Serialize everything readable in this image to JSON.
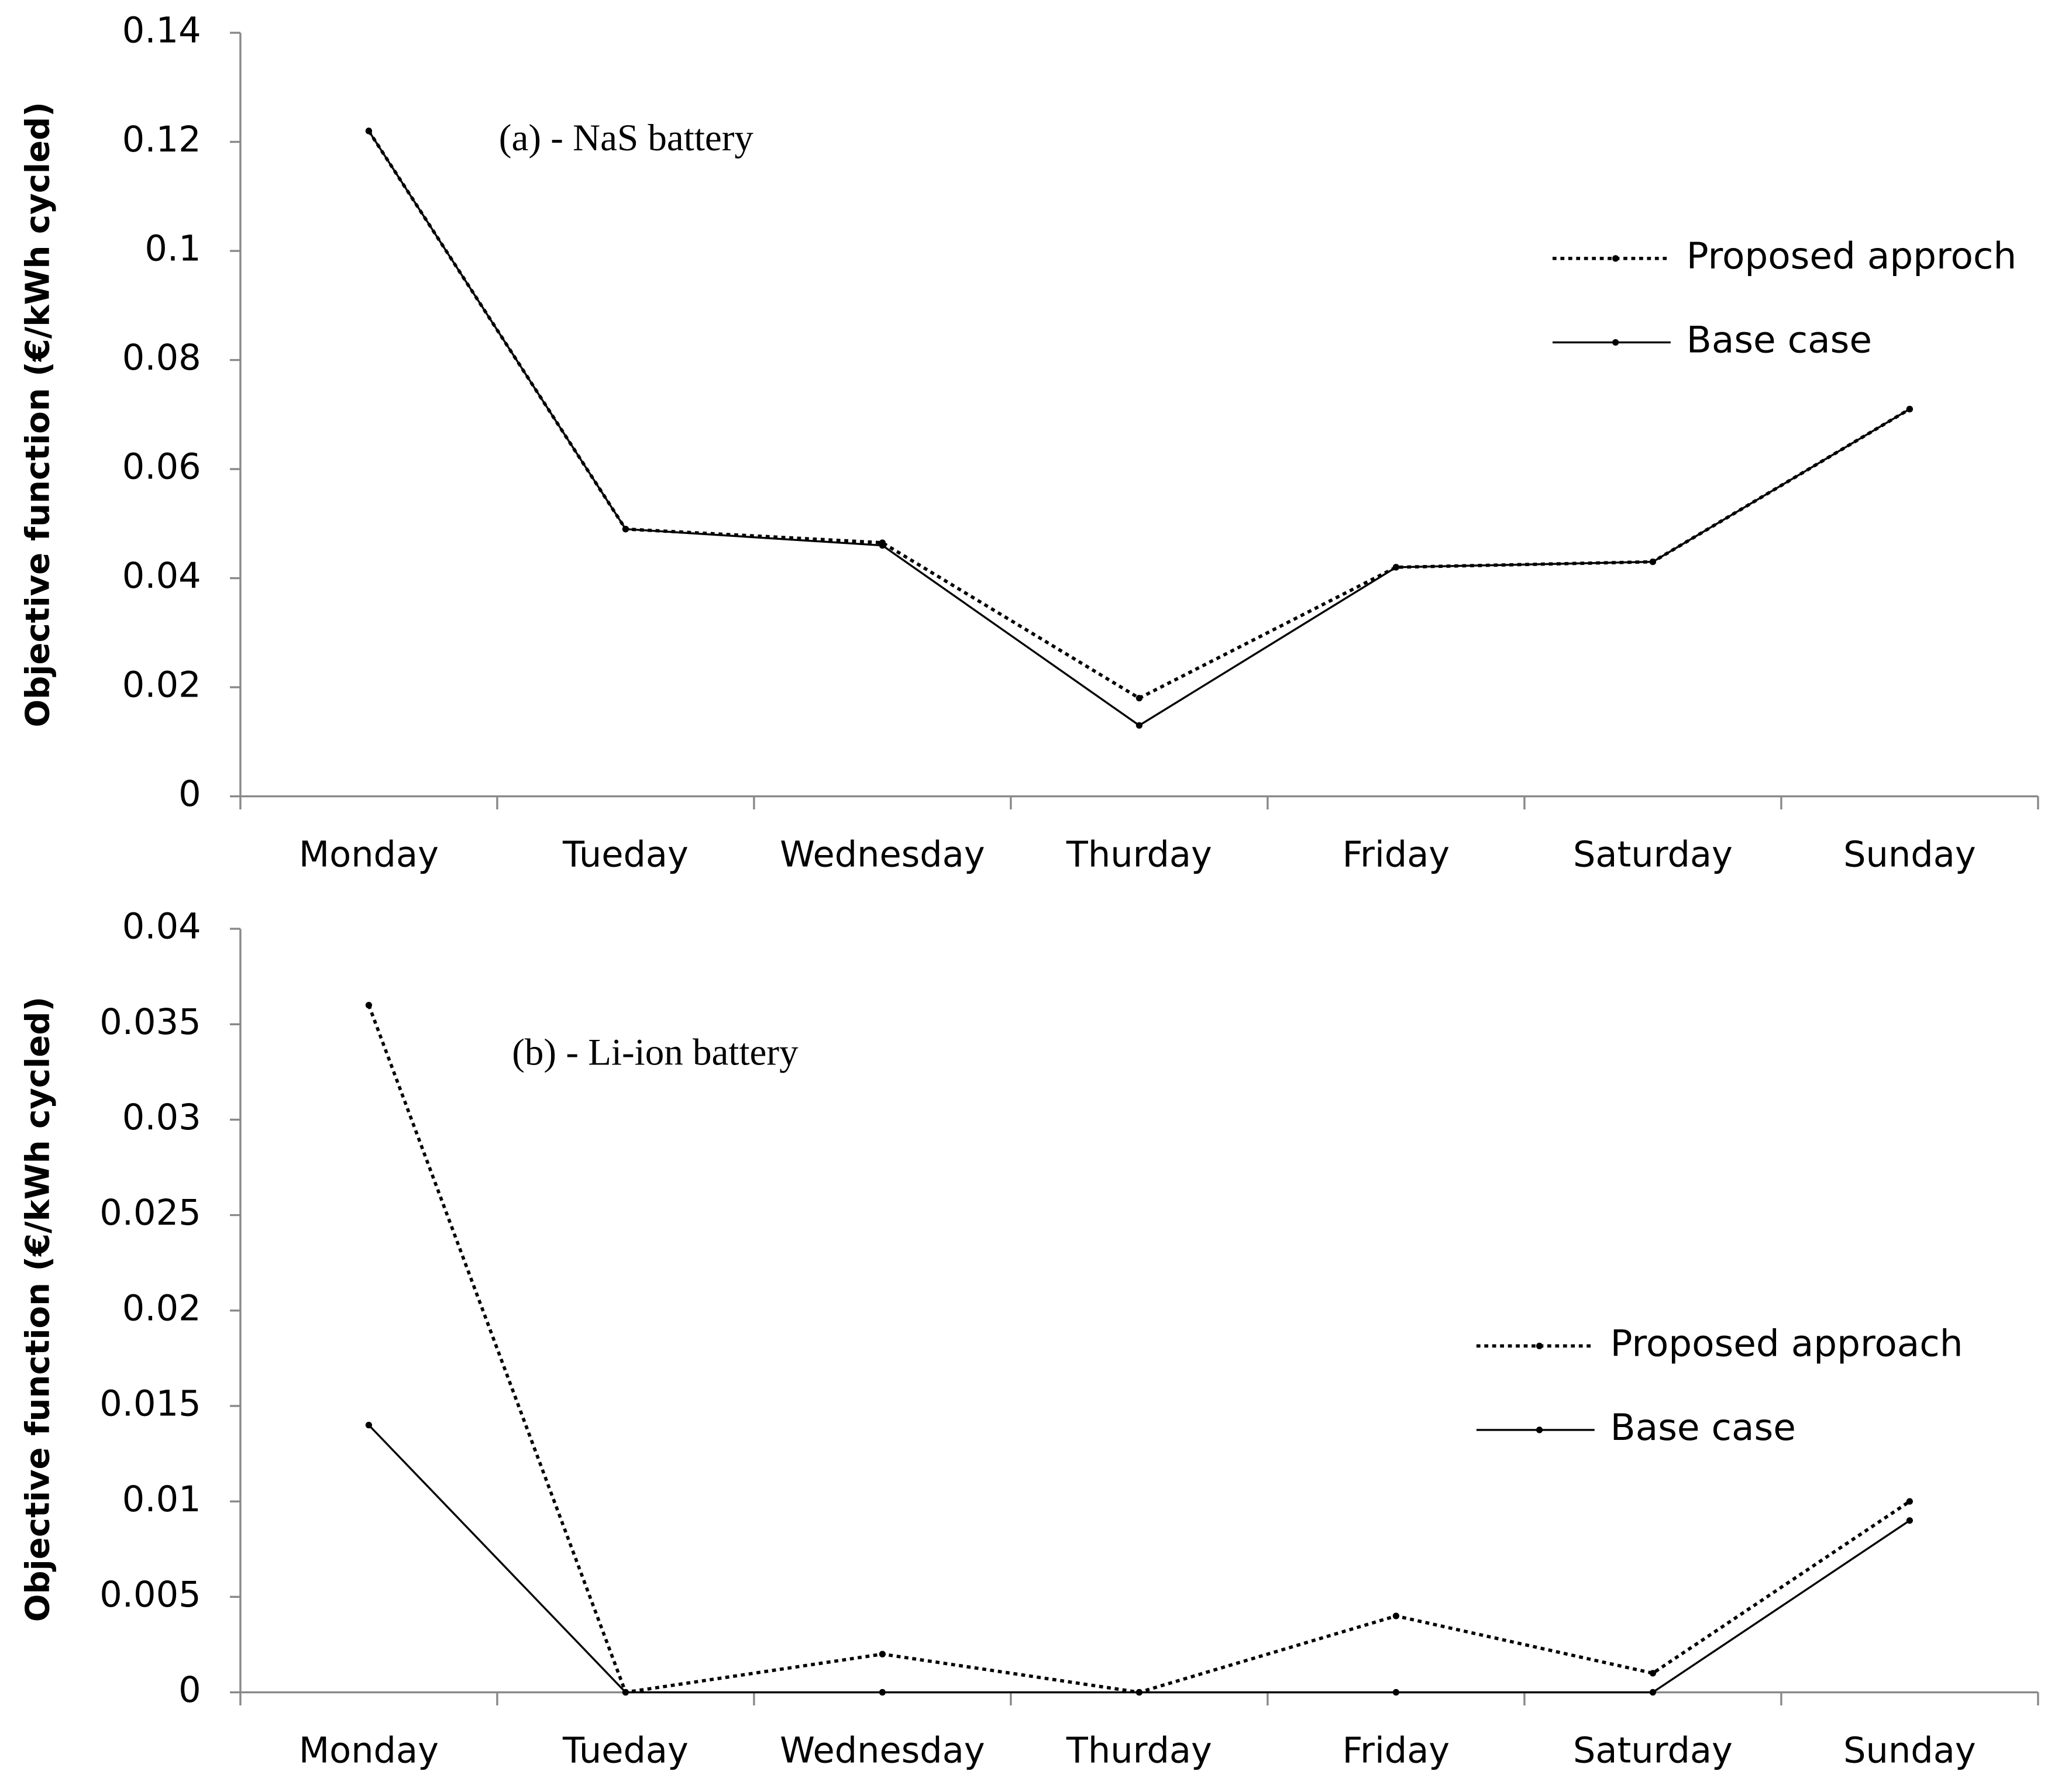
{
  "chart_data": [
    {
      "type": "line",
      "annotation": "(a) - NaS battery",
      "y_label": "Objective function (€/kWh cycled)",
      "categories": [
        "Monday",
        "Tueday",
        "Wednesday",
        "Thurday",
        "Friday",
        "Saturday",
        "Sunday"
      ],
      "ylim": [
        0,
        0.14
      ],
      "yticks": [
        0,
        0.02,
        0.04,
        0.06,
        0.08,
        0.1,
        0.12,
        0.14
      ],
      "grid": false,
      "legend": "upper right",
      "series": [
        {
          "name": "Proposed approch",
          "color": "#000000",
          "style": "dotted",
          "values": [
            0.122,
            0.049,
            0.0465,
            0.018,
            0.042,
            0.043,
            0.071
          ]
        },
        {
          "name": "Base case",
          "color": "#000000",
          "style": "solid",
          "values": [
            0.122,
            0.049,
            0.046,
            0.013,
            0.042,
            0.043,
            0.071
          ]
        }
      ]
    },
    {
      "type": "line",
      "annotation": "(b) - Li-ion battery",
      "y_label": "Objective function (€/kWh cycled)",
      "categories": [
        "Monday",
        "Tueday",
        "Wednesday",
        "Thurday",
        "Friday",
        "Saturday",
        "Sunday"
      ],
      "ylim": [
        0,
        0.04
      ],
      "yticks": [
        0,
        0.005,
        0.01,
        0.015,
        0.02,
        0.025,
        0.03,
        0.035,
        0.04
      ],
      "grid": false,
      "legend": "right",
      "series": [
        {
          "name": "Proposed approach",
          "color": "#000000",
          "style": "dotted",
          "values": [
            0.036,
            0,
            0.002,
            0,
            0.004,
            0.001,
            0.01
          ]
        },
        {
          "name": "Base case",
          "color": "#000000",
          "style": "solid",
          "values": [
            0.014,
            0,
            0,
            0,
            0,
            0,
            0.009
          ]
        }
      ]
    }
  ]
}
